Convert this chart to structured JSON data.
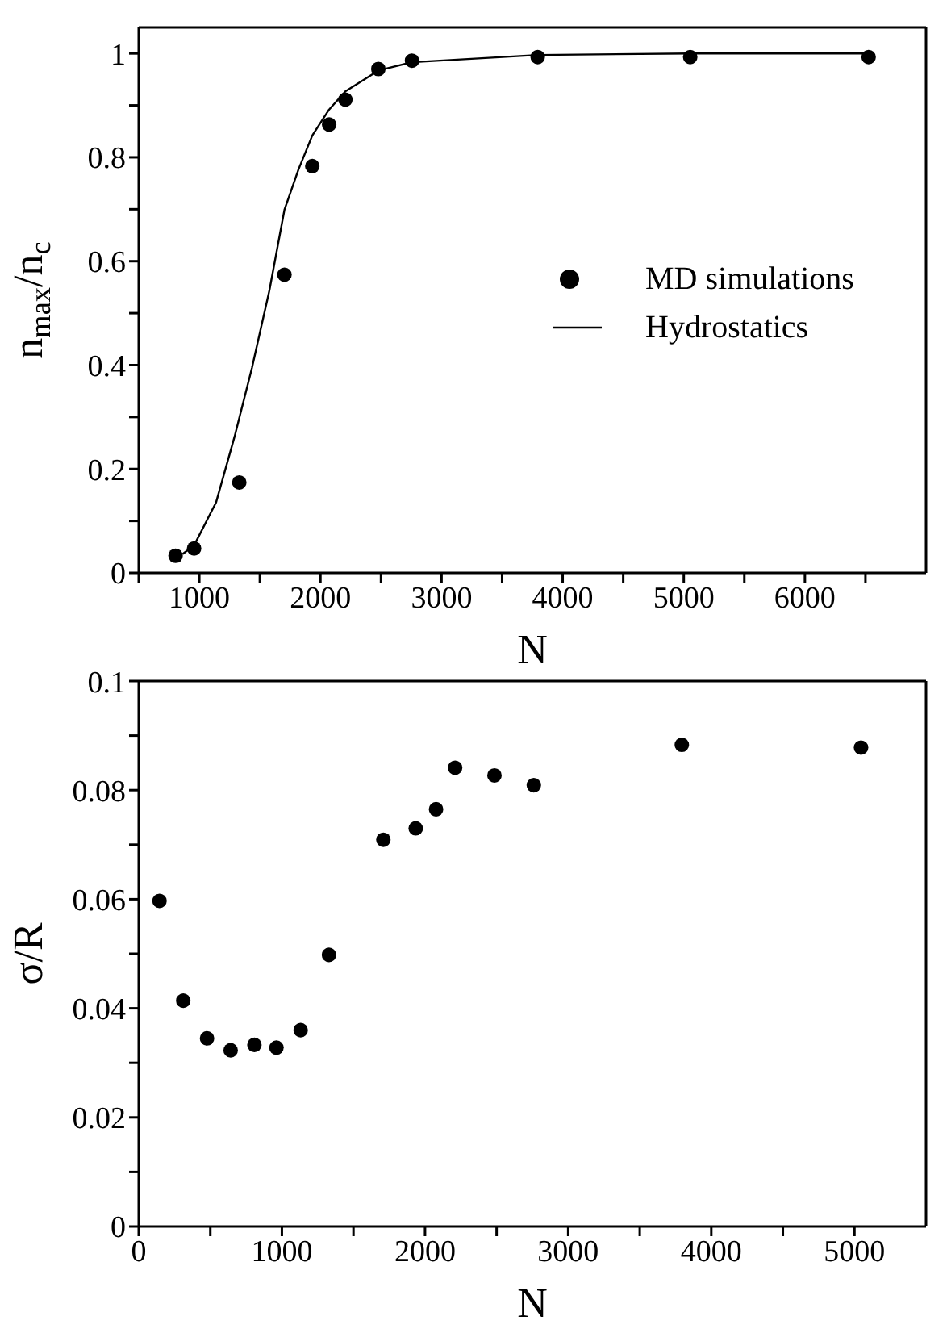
{
  "chart_data": [
    {
      "type": "scatter",
      "xlabel": "N",
      "ylabel": "n$_{max}$/n$_{c}$",
      "xlim": [
        500,
        7000
      ],
      "ylim": [
        0,
        1.05
      ],
      "xticks": [
        {
          "value": 500,
          "label": null
        },
        1000,
        {
          "value": 1500,
          "label": null
        },
        2000,
        {
          "value": 2500,
          "label": null
        },
        3000,
        {
          "value": 3500,
          "label": null
        },
        4000,
        {
          "value": 4500,
          "label": null
        },
        5000,
        {
          "value": 5500,
          "label": null
        },
        6000,
        {
          "value": 6500,
          "label": null
        }
      ],
      "yticks": [
        0,
        {
          "value": 0.1,
          "label": null
        },
        0.2,
        {
          "value": 0.3,
          "label": null
        },
        0.4,
        {
          "value": 0.5,
          "label": null
        },
        0.6,
        {
          "value": 0.7,
          "label": null
        },
        0.8,
        {
          "value": 0.9,
          "label": null
        },
        1
      ],
      "legend": "right",
      "marker": "circle",
      "series": [
        {
          "name": "MD simulations",
          "color": "#000000",
          "x": [
            804,
            957,
            1330,
            1703,
            1933,
            2072,
            2206,
            2478,
            2756,
            3794,
            5053,
            6526
          ],
          "values": [
            0.033,
            0.047,
            0.174,
            0.574,
            0.783,
            0.863,
            0.911,
            0.97,
            0.986,
            0.993,
            0.993,
            0.993
          ]
        },
        {
          "name": "Hydrostatics",
          "type": "line",
          "marker": "none",
          "color": "#000000",
          "x": [
            861,
            957,
            1139,
            1292,
            1435,
            1579,
            1703,
            1818,
            1933,
            2072,
            2206,
            2478,
            2756,
            3794,
            5053,
            6526
          ],
          "values": [
            0.036,
            0.053,
            0.136,
            0.263,
            0.395,
            0.544,
            0.699,
            0.776,
            0.842,
            0.892,
            0.927,
            0.967,
            0.983,
            0.997,
            1.0,
            1.0
          ]
        }
      ]
    },
    {
      "type": "scatter",
      "xlabel": "N",
      "ylabel": "σ/R",
      "xlim": [
        0,
        5500
      ],
      "ylim": [
        0,
        0.1
      ],
      "xticks": [
        0,
        {
          "value": 500,
          "label": null
        },
        1000,
        {
          "value": 1500,
          "label": null
        },
        2000,
        {
          "value": 2500,
          "label": null
        },
        3000,
        {
          "value": 3500,
          "label": null
        },
        4000,
        {
          "value": 4500,
          "label": null
        },
        5000
      ],
      "yticks": [
        0,
        {
          "value": 0.01,
          "label": null
        },
        0.02,
        {
          "value": 0.03,
          "label": null
        },
        0.04,
        {
          "value": 0.05,
          "label": null
        },
        0.06,
        {
          "value": 0.07,
          "label": null
        },
        0.08,
        {
          "value": 0.09,
          "label": null
        },
        0.1
      ],
      "marker": "circle",
      "series": [
        {
          "color": "#000000",
          "x": [
            145,
            311,
            477,
            642,
            808,
            962,
            1131,
            1329,
            1709,
            1935,
            2077,
            2210,
            2485,
            2760,
            3794,
            5046
          ],
          "values": [
            0.0597,
            0.0414,
            0.0345,
            0.0323,
            0.0333,
            0.0328,
            0.036,
            0.0498,
            0.0709,
            0.073,
            0.0765,
            0.0841,
            0.0827,
            0.0809,
            0.0883,
            0.0878
          ]
        }
      ]
    }
  ]
}
